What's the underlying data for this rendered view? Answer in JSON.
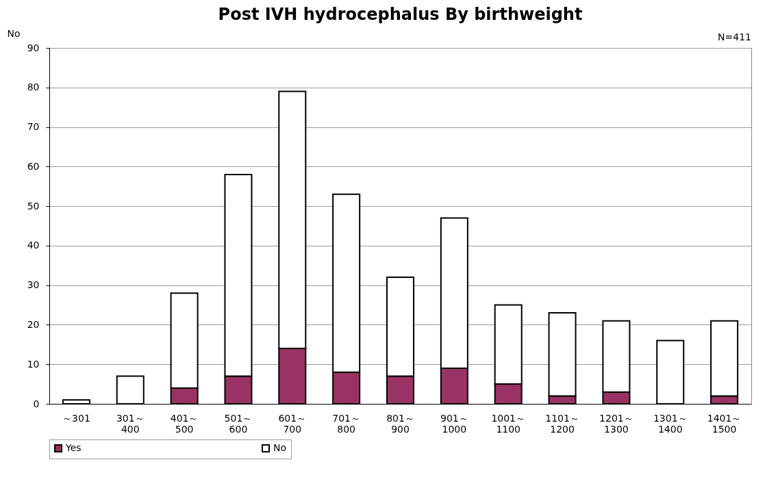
{
  "chart_data": {
    "type": "bar",
    "title": "Post IVH hydrocephalus By birthweight",
    "ylabel": "No",
    "annotations": [
      "N=411"
    ],
    "categories": [
      "～301",
      "301～400",
      "401～500",
      "501～600",
      "601～700",
      "701～800",
      "801～900",
      "901～1000",
      "1001～1100",
      "1101～1200",
      "1201～1300",
      "1301～1400",
      "1401～1500"
    ],
    "series": [
      {
        "name": "Yes",
        "color": "#993366",
        "values": [
          0,
          0,
          4,
          7,
          14,
          8,
          7,
          9,
          5,
          2,
          3,
          0,
          2
        ]
      },
      {
        "name": "No",
        "color": "#ffffff",
        "values": [
          1,
          7,
          24,
          51,
          65,
          45,
          25,
          38,
          20,
          21,
          18,
          16,
          19
        ]
      }
    ],
    "stacked": true,
    "ylim": [
      0,
      90
    ],
    "yticks": [
      0,
      10,
      20,
      30,
      40,
      50,
      60,
      70,
      80,
      90
    ],
    "grid": "y",
    "legend": "bottom"
  }
}
